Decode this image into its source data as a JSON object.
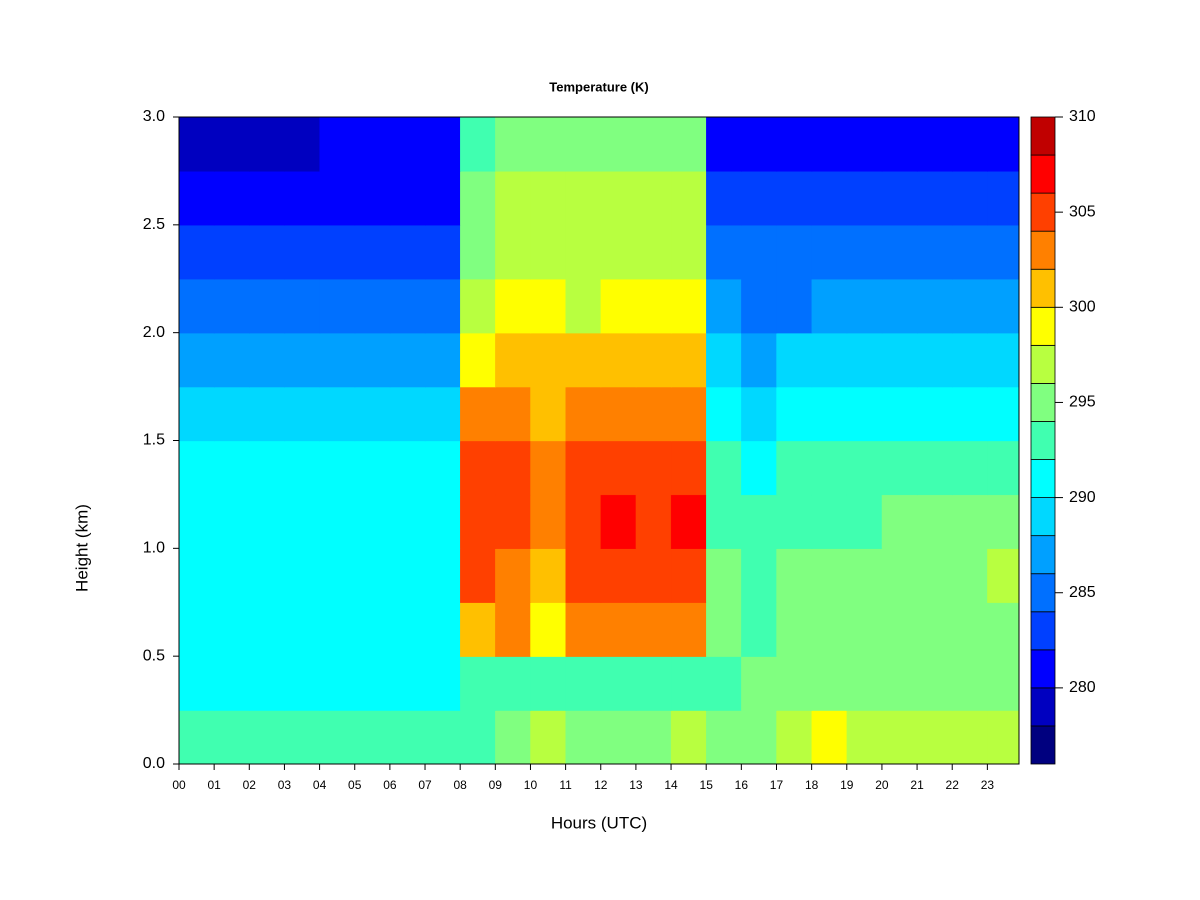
{
  "chart_data": {
    "type": "heatmap",
    "title": "Temperature (K)",
    "xlabel": "Hours (UTC)",
    "ylabel": "Height (km)",
    "xlim": [
      0,
      23.9
    ],
    "ylim": [
      0,
      3
    ],
    "xticks": [
      {
        "value": 0,
        "label": "00"
      },
      {
        "value": 1,
        "label": "01"
      },
      {
        "value": 2,
        "label": "02"
      },
      {
        "value": 3,
        "label": "03"
      },
      {
        "value": 4,
        "label": "04"
      },
      {
        "value": 5,
        "label": "05"
      },
      {
        "value": 6,
        "label": "06"
      },
      {
        "value": 7,
        "label": "07"
      },
      {
        "value": 8,
        "label": "08"
      },
      {
        "value": 9,
        "label": "09"
      },
      {
        "value": 10,
        "label": "10"
      },
      {
        "value": 11,
        "label": "11"
      },
      {
        "value": 12,
        "label": "12"
      },
      {
        "value": 13,
        "label": "13"
      },
      {
        "value": 14,
        "label": "14"
      },
      {
        "value": 15,
        "label": "15"
      },
      {
        "value": 16,
        "label": "16"
      },
      {
        "value": 17,
        "label": "17"
      },
      {
        "value": 18,
        "label": "18"
      },
      {
        "value": 19,
        "label": "19"
      },
      {
        "value": 20,
        "label": "20"
      },
      {
        "value": 21,
        "label": "21"
      },
      {
        "value": 22,
        "label": "22"
      },
      {
        "value": 23,
        "label": "23"
      }
    ],
    "yticks": [
      {
        "value": 0,
        "label": "0.0"
      },
      {
        "value": 0.5,
        "label": "0.5"
      },
      {
        "value": 1,
        "label": "1.0"
      },
      {
        "value": 1.5,
        "label": "1.5"
      },
      {
        "value": 2,
        "label": "2.0"
      },
      {
        "value": 2.5,
        "label": "2.5"
      },
      {
        "value": 3,
        "label": "3.0"
      }
    ],
    "x": [
      0,
      1,
      2,
      3,
      4,
      5,
      6,
      7,
      8,
      9,
      10,
      11,
      12,
      13,
      14,
      15,
      16,
      17,
      18,
      19,
      20,
      21,
      22,
      23
    ],
    "y": [
      0,
      0.25,
      0.5,
      0.75,
      1,
      1.25,
      1.5,
      1.75,
      2,
      2.25,
      2.5,
      2.75
    ],
    "z": [
      [
        292,
        292,
        292,
        292,
        292,
        292,
        292,
        292,
        293,
        294,
        296,
        295,
        295,
        295,
        296,
        294,
        295,
        297,
        298,
        297,
        296,
        296,
        296,
        296
      ],
      [
        290,
        290,
        290,
        290,
        290,
        290,
        290,
        290,
        292,
        293,
        293,
        293,
        293,
        293,
        293,
        292,
        294,
        294,
        294,
        294,
        294,
        295,
        295,
        295
      ],
      [
        291,
        291,
        291,
        291,
        291,
        291,
        291,
        291,
        300,
        302,
        298,
        302,
        303,
        302,
        303,
        294,
        293,
        294,
        294,
        294,
        294,
        294,
        294,
        294
      ],
      [
        291,
        291,
        291,
        291,
        291,
        291,
        291,
        291,
        304,
        303,
        301,
        304,
        305,
        304,
        305,
        294,
        293,
        294,
        294,
        294,
        294,
        295,
        295,
        296
      ],
      [
        291,
        291,
        291,
        291,
        291,
        291,
        291,
        291,
        305,
        304,
        303,
        305,
        306,
        305,
        306,
        293,
        292,
        293,
        293,
        293,
        294,
        294,
        294,
        294
      ],
      [
        290,
        290,
        290,
        290,
        290,
        290,
        290,
        290,
        304,
        304,
        303,
        305,
        305,
        304,
        305,
        292,
        291,
        292,
        292,
        292,
        292,
        292,
        292,
        292
      ],
      [
        288,
        288,
        288,
        288,
        288,
        288,
        288,
        288,
        302,
        302,
        301,
        302,
        303,
        302,
        302,
        290,
        289,
        290,
        290,
        290,
        290,
        290,
        290,
        290
      ],
      [
        287,
        287,
        287,
        287,
        287,
        287,
        287,
        287,
        299,
        300,
        300,
        300,
        300,
        300,
        300,
        289,
        287,
        288,
        288,
        288,
        289,
        289,
        289,
        289
      ],
      [
        284,
        284,
        284,
        284,
        284,
        284,
        284,
        284,
        297,
        298,
        298,
        297,
        298,
        298,
        298,
        287,
        285,
        285,
        286,
        286,
        286,
        287,
        287,
        287
      ],
      [
        283,
        283,
        283,
        283,
        283,
        283,
        283,
        283,
        295,
        297,
        297,
        297,
        297,
        297,
        297,
        285,
        284,
        284,
        284,
        284,
        284,
        284,
        284,
        284
      ],
      [
        281,
        281,
        281,
        281,
        281,
        281,
        281,
        281,
        294,
        296,
        296,
        296,
        296,
        296,
        296,
        283,
        282,
        282,
        282,
        282,
        282,
        282,
        282,
        282
      ],
      [
        279,
        279,
        279,
        279,
        280,
        280,
        280,
        280,
        293,
        294,
        295,
        295,
        295,
        294,
        294,
        281,
        281,
        281,
        281,
        281,
        281,
        281,
        281,
        281
      ]
    ],
    "levels": [
      276,
      278,
      280,
      282,
      284,
      286,
      288,
      290,
      292,
      294,
      296,
      298,
      300,
      302,
      304,
      306,
      308,
      310
    ],
    "colors": [
      "#00007f",
      "#0000c0",
      "#0000ff",
      "#0040ff",
      "#0070ff",
      "#00a0ff",
      "#00d8ff",
      "#00ffff",
      "#40ffb0",
      "#80ff80",
      "#b8ff40",
      "#ffff00",
      "#ffc000",
      "#ff8000",
      "#ff4000",
      "#ff0000",
      "#c00000",
      "#800000"
    ],
    "cticks": [
      280,
      285,
      290,
      295,
      300,
      305,
      310
    ]
  }
}
